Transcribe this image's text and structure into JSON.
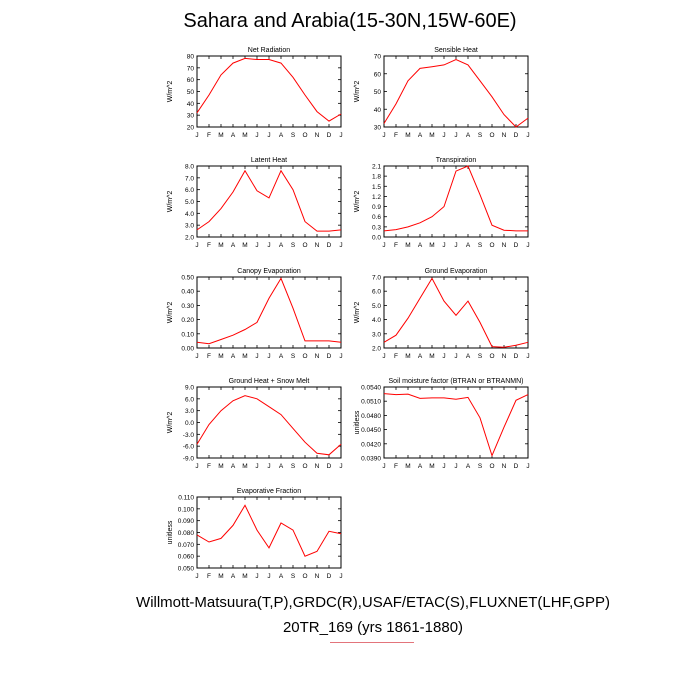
{
  "figure": {
    "title": "Sahara and Arabia(15-30N,15W-60E)",
    "footer_line1": "Willmott-Matsuura(T,P),GRDC(R),USAF/ETAC(S),FLUXNET(LHF,GPP)",
    "footer_line2": "20TR_169 (yrs 1861-1880)",
    "line_color": "#ff0000",
    "months": [
      "J",
      "F",
      "M",
      "A",
      "M",
      "J",
      "J",
      "A",
      "S",
      "O",
      "N",
      "D",
      "J"
    ]
  },
  "chart_data": [
    {
      "type": "line",
      "title": "Net Radiation",
      "ylabel": "W/m^2",
      "ylim": [
        20,
        80
      ],
      "yticks": [
        "20",
        "30",
        "40",
        "50",
        "60",
        "70",
        "80"
      ],
      "values": [
        32,
        47,
        64,
        74,
        78,
        77,
        77,
        74,
        62,
        47,
        33,
        25,
        31
      ]
    },
    {
      "type": "line",
      "title": "Sensible Heat",
      "ylabel": "W/m^2",
      "ylim": [
        30,
        70
      ],
      "yticks": [
        "30",
        "40",
        "50",
        "60",
        "70"
      ],
      "values": [
        32,
        43,
        56,
        63,
        64,
        65,
        68,
        65,
        56,
        47,
        37,
        30,
        35
      ]
    },
    {
      "type": "line",
      "title": "Latent Heat",
      "ylabel": "W/m^2",
      "ylim": [
        2.0,
        8.0
      ],
      "yticks": [
        "2.0",
        "3.0",
        "4.0",
        "5.0",
        "6.0",
        "7.0",
        "8.0"
      ],
      "values": [
        2.6,
        3.3,
        4.4,
        5.8,
        7.6,
        5.9,
        5.3,
        7.6,
        6.0,
        3.3,
        2.5,
        2.5,
        2.6
      ]
    },
    {
      "type": "line",
      "title": "Transpiration",
      "ylabel": "W/m^2",
      "ylim": [
        0.0,
        2.1
      ],
      "yticks": [
        "0.0",
        "0.3",
        "0.6",
        "0.9",
        "1.2",
        "1.5",
        "1.8",
        "2.1"
      ],
      "values": [
        0.18,
        0.22,
        0.3,
        0.42,
        0.6,
        0.9,
        1.95,
        2.1,
        1.25,
        0.35,
        0.2,
        0.18,
        0.18
      ]
    },
    {
      "type": "line",
      "title": "Canopy Evaporation",
      "ylabel": "W/m^2",
      "ylim": [
        0.0,
        0.5
      ],
      "yticks": [
        "0.00",
        "0.10",
        "0.20",
        "0.30",
        "0.40",
        "0.50"
      ],
      "values": [
        0.04,
        0.03,
        0.06,
        0.09,
        0.13,
        0.18,
        0.35,
        0.49,
        0.28,
        0.05,
        0.05,
        0.05,
        0.04
      ]
    },
    {
      "type": "line",
      "title": "Ground Evaporation",
      "ylabel": "W/m^2",
      "ylim": [
        2.0,
        7.0
      ],
      "yticks": [
        "2.0",
        "3.0",
        "4.0",
        "5.0",
        "6.0",
        "7.0"
      ],
      "values": [
        2.4,
        2.9,
        4.1,
        5.5,
        6.9,
        5.3,
        4.3,
        5.3,
        3.8,
        2.1,
        2.05,
        2.2,
        2.4
      ]
    },
    {
      "type": "line",
      "title": "Ground Heat + Snow Melt",
      "ylabel": "W/m^2",
      "ylim": [
        -9.0,
        9.0
      ],
      "yticks": [
        "-9.0",
        "-6.0",
        "-3.0",
        "0.0",
        "3.0",
        "6.0",
        "9.0"
      ],
      "values": [
        -5.5,
        -0.5,
        3.0,
        5.5,
        6.8,
        6.0,
        4.0,
        2.0,
        -1.5,
        -5.0,
        -7.8,
        -8.2,
        -5.5
      ]
    },
    {
      "type": "line",
      "title": "Soil moisture factor (BTRAN or BTRANMN)",
      "ylabel": "unitless",
      "ylim": [
        0.039,
        0.054
      ],
      "yticks": [
        "0.0390",
        "0.0420",
        "0.0450",
        "0.0480",
        "0.0510",
        "0.0540"
      ],
      "values": [
        0.0526,
        0.0524,
        0.0525,
        0.0516,
        0.0517,
        0.0517,
        0.0514,
        0.0518,
        0.0475,
        0.0395,
        0.0455,
        0.0512,
        0.0524
      ]
    },
    {
      "type": "line",
      "title": "Evaporative Fraction",
      "ylabel": "unitless",
      "ylim": [
        0.05,
        0.11
      ],
      "yticks": [
        "0.050",
        "0.060",
        "0.070",
        "0.080",
        "0.090",
        "0.100",
        "0.110"
      ],
      "values": [
        0.078,
        0.072,
        0.075,
        0.086,
        0.103,
        0.082,
        0.067,
        0.088,
        0.082,
        0.06,
        0.064,
        0.081,
        0.079
      ]
    }
  ]
}
